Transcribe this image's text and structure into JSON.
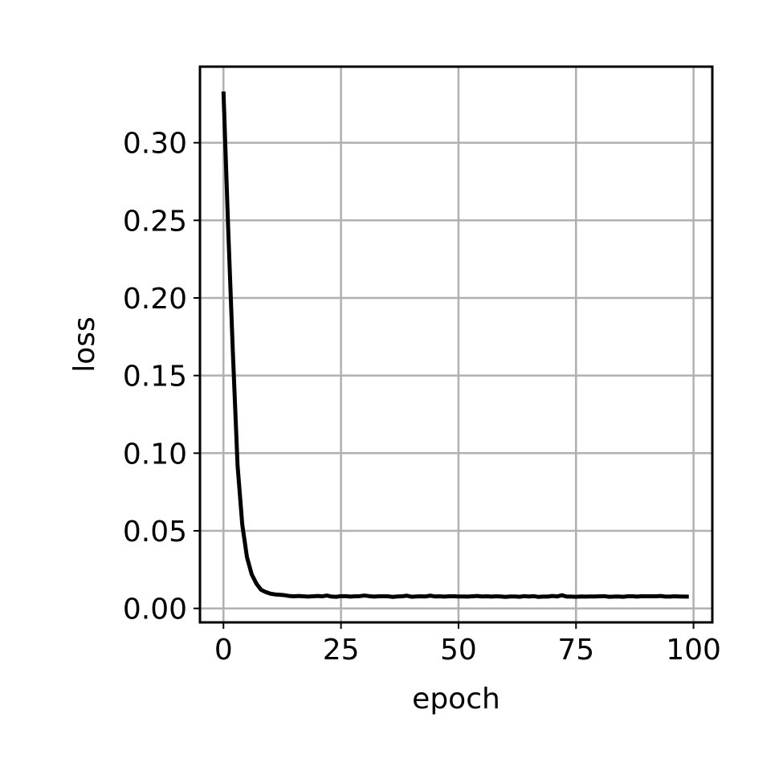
{
  "chart_data": {
    "type": "line",
    "title": "",
    "xlabel": "epoch",
    "ylabel": "loss",
    "xlim": [
      -5,
      104
    ],
    "ylim": [
      -0.009,
      0.349
    ],
    "xticks": [
      0,
      25,
      50,
      75,
      100
    ],
    "xtick_labels": [
      "0",
      "25",
      "50",
      "75",
      "100"
    ],
    "yticks": [
      0.0,
      0.05,
      0.1,
      0.15,
      0.2,
      0.25,
      0.3
    ],
    "ytick_labels": [
      "0.00",
      "0.05",
      "0.10",
      "0.15",
      "0.20",
      "0.25",
      "0.30"
    ],
    "grid": true,
    "series": [
      {
        "color": "#000000",
        "x": [
          0,
          1,
          2,
          3,
          4,
          5,
          6,
          7,
          8,
          9,
          10,
          11,
          12,
          13,
          14,
          15,
          16,
          17,
          18,
          19,
          20,
          21,
          22,
          23,
          24,
          25,
          26,
          27,
          28,
          29,
          30,
          31,
          32,
          33,
          34,
          35,
          36,
          37,
          38,
          39,
          40,
          41,
          42,
          43,
          44,
          45,
          46,
          47,
          48,
          49,
          50,
          51,
          52,
          53,
          54,
          55,
          56,
          57,
          58,
          59,
          60,
          61,
          62,
          63,
          64,
          65,
          66,
          67,
          68,
          69,
          70,
          71,
          72,
          73,
          74,
          75,
          76,
          77,
          78,
          79,
          80,
          81,
          82,
          83,
          84,
          85,
          86,
          87,
          88,
          89,
          90,
          91,
          92,
          93,
          94,
          95,
          96,
          97,
          98,
          99
        ],
        "y": [
          0.333,
          0.245,
          0.165,
          0.092,
          0.054,
          0.033,
          0.022,
          0.016,
          0.012,
          0.0105,
          0.0095,
          0.009,
          0.0088,
          0.0085,
          0.008,
          0.0078,
          0.008,
          0.0078,
          0.0076,
          0.0078,
          0.008,
          0.0078,
          0.0083,
          0.0076,
          0.0075,
          0.0079,
          0.0079,
          0.0076,
          0.0078,
          0.0079,
          0.0083,
          0.0079,
          0.0076,
          0.0078,
          0.0078,
          0.0078,
          0.0074,
          0.0077,
          0.0078,
          0.0082,
          0.0075,
          0.0077,
          0.0078,
          0.0077,
          0.0082,
          0.0077,
          0.0078,
          0.0076,
          0.0078,
          0.0078,
          0.0077,
          0.0077,
          0.0076,
          0.0078,
          0.008,
          0.0077,
          0.0078,
          0.0076,
          0.0078,
          0.0077,
          0.0074,
          0.0077,
          0.0077,
          0.0075,
          0.0079,
          0.0077,
          0.0079,
          0.0074,
          0.0076,
          0.0076,
          0.008,
          0.0077,
          0.0085,
          0.0076,
          0.0076,
          0.0075,
          0.0077,
          0.0076,
          0.0077,
          0.0077,
          0.0078,
          0.0079,
          0.0075,
          0.0076,
          0.0077,
          0.0075,
          0.0078,
          0.0078,
          0.0076,
          0.0079,
          0.0078,
          0.0078,
          0.0078,
          0.008,
          0.0076,
          0.0076,
          0.0078,
          0.0077,
          0.0076,
          0.0076
        ]
      }
    ]
  }
}
